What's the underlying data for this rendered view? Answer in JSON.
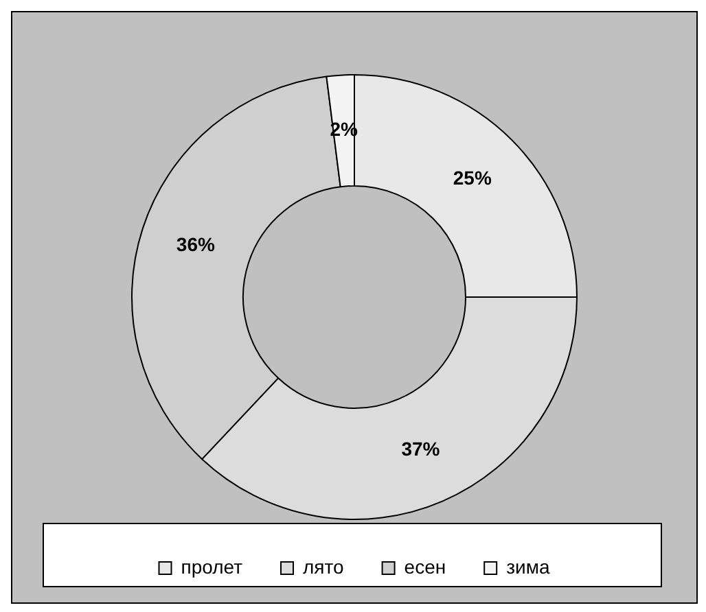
{
  "chart_data": {
    "type": "donut",
    "categories": [
      "пролет",
      "лято",
      "есен",
      "зима"
    ],
    "values": [
      25,
      37,
      36,
      2
    ],
    "value_labels": [
      "25%",
      "37%",
      "36%",
      "2%"
    ],
    "colors": [
      "#e8e8e8",
      "#dcdcdc",
      "#cfcfcf",
      "#f4f4f4"
    ],
    "legend": "bottom"
  }
}
